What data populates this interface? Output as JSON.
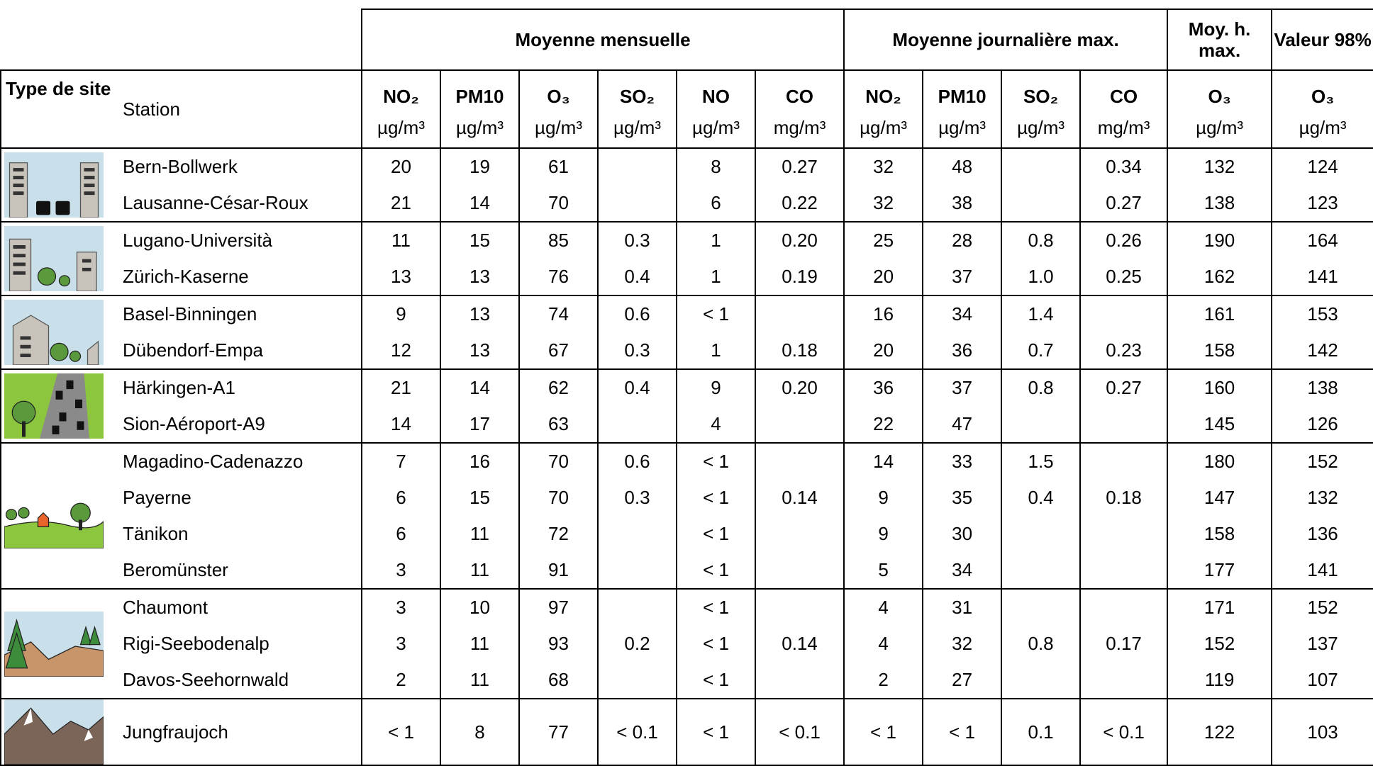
{
  "table": {
    "groups": [
      "Moyenne mensuelle",
      "Moyenne journalière max.",
      "Moy. h. max.",
      "Valeur 98%"
    ],
    "type_label": "Type de site",
    "station_label": "Station",
    "pollutants": [
      "NO₂",
      "PM10",
      "O₃",
      "SO₂",
      "NO",
      "CO",
      "NO₂",
      "PM10",
      "SO₂",
      "CO",
      "O₃",
      "O₃"
    ],
    "units": [
      "µg/m³",
      "µg/m³",
      "µg/m³",
      "µg/m³",
      "µg/m³",
      "mg/m³",
      "µg/m³",
      "µg/m³",
      "µg/m³",
      "mg/m³",
      "µg/m³",
      "µg/m³"
    ],
    "site_groups": [
      {
        "stations": [
          {
            "name": "Bern-Bollwerk",
            "values": [
              "20",
              "19",
              "61",
              null,
              "8",
              "0.27",
              "32",
              "48",
              null,
              "0.34",
              "132",
              "124"
            ]
          },
          {
            "name": "Lausanne-César-Roux",
            "values": [
              "21",
              "14",
              "70",
              null,
              "6",
              "0.22",
              "32",
              "38",
              null,
              "0.27",
              "138",
              "123"
            ]
          }
        ]
      },
      {
        "stations": [
          {
            "name": "Lugano-Università",
            "values": [
              "11",
              "15",
              "85",
              "0.3",
              "1",
              "0.20",
              "25",
              "28",
              "0.8",
              "0.26",
              "190",
              "164"
            ]
          },
          {
            "name": "Zürich-Kaserne",
            "values": [
              "13",
              "13",
              "76",
              "0.4",
              "1",
              "0.19",
              "20",
              "37",
              "1.0",
              "0.25",
              "162",
              "141"
            ]
          }
        ]
      },
      {
        "stations": [
          {
            "name": "Basel-Binningen",
            "values": [
              "9",
              "13",
              "74",
              "0.6",
              "< 1",
              null,
              "16",
              "34",
              "1.4",
              null,
              "161",
              "153"
            ]
          },
          {
            "name": "Dübendorf-Empa",
            "values": [
              "12",
              "13",
              "67",
              "0.3",
              "1",
              "0.18",
              "20",
              "36",
              "0.7",
              "0.23",
              "158",
              "142"
            ]
          }
        ]
      },
      {
        "stations": [
          {
            "name": "Härkingen-A1",
            "values": [
              "21",
              "14",
              "62",
              "0.4",
              "9",
              "0.20",
              "36",
              "37",
              "0.8",
              "0.27",
              "160",
              "138"
            ]
          },
          {
            "name": "Sion-Aéroport-A9",
            "values": [
              "14",
              "17",
              "63",
              null,
              "4",
              null,
              "22",
              "47",
              null,
              null,
              "145",
              "126"
            ]
          }
        ]
      },
      {
        "stations": [
          {
            "name": "Magadino-Cadenazzo",
            "values": [
              "7",
              "16",
              "70",
              "0.6",
              "< 1",
              null,
              "14",
              "33",
              "1.5",
              null,
              "180",
              "152"
            ]
          },
          {
            "name": "Payerne",
            "values": [
              "6",
              "15",
              "70",
              "0.3",
              "< 1",
              "0.14",
              "9",
              "35",
              "0.4",
              "0.18",
              "147",
              "132"
            ]
          },
          {
            "name": "Tänikon",
            "values": [
              "6",
              "11",
              "72",
              null,
              "< 1",
              null,
              "9",
              "30",
              null,
              null,
              "158",
              "136"
            ]
          },
          {
            "name": "Beromünster",
            "values": [
              "3",
              "11",
              "91",
              null,
              "< 1",
              null,
              "5",
              "34",
              null,
              null,
              "177",
              "141"
            ]
          }
        ]
      },
      {
        "stations": [
          {
            "name": "Chaumont",
            "values": [
              "3",
              "10",
              "97",
              null,
              "< 1",
              null,
              "4",
              "31",
              null,
              null,
              "171",
              "152"
            ]
          },
          {
            "name": "Rigi-Seebodenalp",
            "values": [
              "3",
              "11",
              "93",
              "0.2",
              "< 1",
              "0.14",
              "4",
              "32",
              "0.8",
              "0.17",
              "152",
              "137"
            ]
          },
          {
            "name": "Davos-Seehornwald",
            "values": [
              "2",
              "11",
              "68",
              null,
              "< 1",
              null,
              "2",
              "27",
              null,
              null,
              "119",
              "107"
            ]
          }
        ]
      },
      {
        "stations": [
          {
            "name": "Jungfraujoch",
            "values": [
              "< 1",
              "8",
              "77",
              "< 0.1",
              "< 1",
              "< 0.1",
              "< 1",
              "< 1",
              "0.1",
              "< 0.1",
              "122",
              "103"
            ]
          }
        ]
      }
    ]
  }
}
